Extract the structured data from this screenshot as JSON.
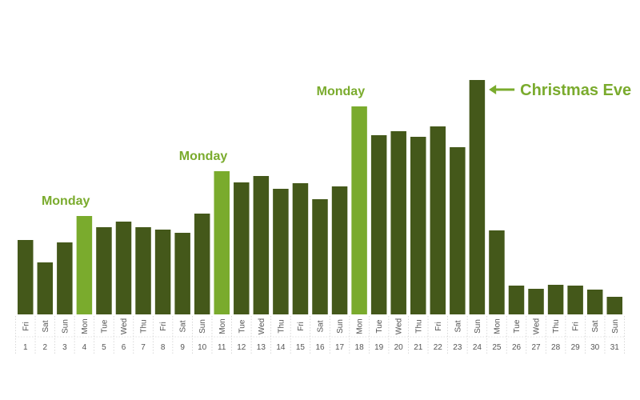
{
  "chart_data": {
    "type": "bar",
    "categories": [
      "1",
      "2",
      "3",
      "4",
      "5",
      "6",
      "7",
      "8",
      "9",
      "10",
      "11",
      "12",
      "13",
      "14",
      "15",
      "16",
      "17",
      "18",
      "19",
      "20",
      "21",
      "22",
      "23",
      "24",
      "25",
      "26",
      "27",
      "28",
      "29",
      "30",
      "31"
    ],
    "weekdays": [
      "Fri",
      "Sat",
      "Sun",
      "Mon",
      "Tue",
      "Wed",
      "Thu",
      "Fri",
      "Sat",
      "Sun",
      "Mon",
      "Tue",
      "Wed",
      "Thu",
      "Fri",
      "Sat",
      "Sun",
      "Mon",
      "Tue",
      "Wed",
      "Thu",
      "Fri",
      "Sat",
      "Sun",
      "Mon",
      "Tue",
      "Wed",
      "Thu",
      "Fri",
      "Sat",
      "Sun"
    ],
    "values": [
      93,
      65,
      90,
      123,
      109,
      116,
      109,
      106,
      102,
      126,
      179,
      165,
      173,
      157,
      164,
      144,
      160,
      260,
      224,
      229,
      222,
      235,
      209,
      293,
      105,
      36,
      32,
      37,
      36,
      31,
      22
    ],
    "highlighted_days": [
      "4",
      "11",
      "18"
    ],
    "title": "",
    "xlabel": "",
    "ylabel": "",
    "ylim": [
      0,
      293
    ],
    "grid": false,
    "colors": {
      "bar": "#44581a",
      "highlight": "#7aab2d",
      "annotation": "#7aab2d"
    },
    "annotations": [
      {
        "day": "4",
        "text": "Monday"
      },
      {
        "day": "11",
        "text": "Monday"
      },
      {
        "day": "18",
        "text": "Monday"
      },
      {
        "day": "24",
        "text": "Christmas Eve",
        "arrow": true
      }
    ]
  }
}
